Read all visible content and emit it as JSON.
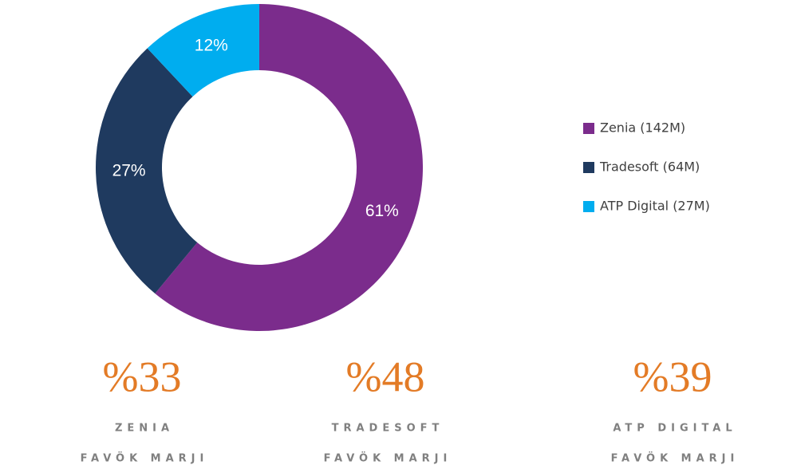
{
  "chart_data": {
    "type": "donut",
    "categories": [
      "Zenia (142M)",
      "Tradesoft (64M)",
      "ATP Digital (27M)"
    ],
    "values": [
      61,
      27,
      12
    ],
    "value_labels": [
      "61%",
      "27%",
      "12%"
    ],
    "colors": [
      "#7b2c8c",
      "#1f3a5f",
      "#00adef"
    ],
    "legend": "right"
  },
  "stats": [
    {
      "value": "%33",
      "name": "ZENIA",
      "label": "FAVÖK MARJI"
    },
    {
      "value": "%48",
      "name": "TRADESOFT",
      "label": "FAVÖK MARJI"
    },
    {
      "value": "%39",
      "name": "ATP DIGITAL",
      "label": "FAVÖK MARJI"
    }
  ]
}
